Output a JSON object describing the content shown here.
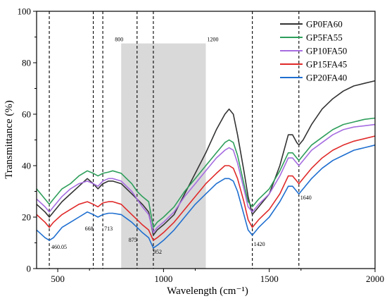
{
  "chart_data": {
    "type": "line",
    "title": "",
    "xlabel": "Wavelength (cm⁻¹)",
    "ylabel": "Transmittance (%)",
    "xlim": [
      400,
      2000
    ],
    "ylim": [
      0,
      100
    ],
    "xticks": [
      "500",
      "1000",
      "1500",
      "2000"
    ],
    "yticks": [
      "0",
      "20",
      "40",
      "60",
      "80",
      "100"
    ],
    "grid": false,
    "legend_position": "top-right",
    "shaded_region": {
      "x_start": 800,
      "x_end": 1200,
      "labels": [
        "800",
        "1200"
      ]
    },
    "reference_lines": [
      {
        "x": 460.05,
        "label": "460.05"
      },
      {
        "x": 668,
        "label": "668"
      },
      {
        "x": 713,
        "label": "713"
      },
      {
        "x": 875,
        "label": "875"
      },
      {
        "x": 952,
        "label": "952"
      },
      {
        "x": 1420,
        "label": "1420"
      },
      {
        "x": 1640,
        "label": "1640"
      }
    ],
    "series": [
      {
        "name": "GP0FA60",
        "color": "#333333",
        "points": [
          [
            400,
            25
          ],
          [
            440,
            22
          ],
          [
            460.05,
            20
          ],
          [
            480,
            22
          ],
          [
            520,
            26
          ],
          [
            560,
            29
          ],
          [
            600,
            32
          ],
          [
            640,
            35
          ],
          [
            668,
            33
          ],
          [
            690,
            31
          ],
          [
            713,
            33
          ],
          [
            740,
            34
          ],
          [
            760,
            34
          ],
          [
            800,
            33
          ],
          [
            850,
            29
          ],
          [
            875,
            27
          ],
          [
            900,
            25
          ],
          [
            930,
            22
          ],
          [
            952,
            13
          ],
          [
            970,
            15
          ],
          [
            1000,
            17
          ],
          [
            1050,
            21
          ],
          [
            1100,
            29
          ],
          [
            1150,
            37
          ],
          [
            1200,
            45
          ],
          [
            1250,
            54
          ],
          [
            1290,
            60
          ],
          [
            1310,
            62
          ],
          [
            1330,
            60
          ],
          [
            1350,
            52
          ],
          [
            1380,
            38
          ],
          [
            1400,
            28
          ],
          [
            1420,
            21
          ],
          [
            1450,
            24
          ],
          [
            1500,
            29
          ],
          [
            1550,
            40
          ],
          [
            1590,
            52
          ],
          [
            1610,
            52
          ],
          [
            1630,
            49
          ],
          [
            1640,
            48
          ],
          [
            1660,
            50
          ],
          [
            1700,
            56
          ],
          [
            1750,
            62
          ],
          [
            1800,
            66
          ],
          [
            1850,
            69
          ],
          [
            1900,
            71
          ],
          [
            1950,
            72
          ],
          [
            2000,
            73
          ]
        ]
      },
      {
        "name": "GP5FA55",
        "color": "#2e9e5b",
        "points": [
          [
            400,
            31
          ],
          [
            440,
            27
          ],
          [
            460.05,
            25
          ],
          [
            480,
            27
          ],
          [
            520,
            31
          ],
          [
            560,
            33
          ],
          [
            600,
            36
          ],
          [
            640,
            38
          ],
          [
            668,
            37
          ],
          [
            690,
            36
          ],
          [
            713,
            37
          ],
          [
            740,
            37.5
          ],
          [
            760,
            38
          ],
          [
            800,
            37
          ],
          [
            850,
            33
          ],
          [
            875,
            30
          ],
          [
            900,
            28
          ],
          [
            930,
            26
          ],
          [
            952,
            16
          ],
          [
            970,
            18
          ],
          [
            1000,
            20
          ],
          [
            1050,
            24
          ],
          [
            1100,
            30
          ],
          [
            1150,
            35
          ],
          [
            1200,
            40
          ],
          [
            1250,
            45
          ],
          [
            1290,
            49
          ],
          [
            1310,
            50
          ],
          [
            1330,
            49
          ],
          [
            1350,
            44
          ],
          [
            1380,
            33
          ],
          [
            1400,
            26
          ],
          [
            1420,
            24
          ],
          [
            1450,
            27
          ],
          [
            1500,
            31
          ],
          [
            1550,
            38
          ],
          [
            1590,
            45
          ],
          [
            1610,
            45
          ],
          [
            1630,
            43
          ],
          [
            1640,
            42
          ],
          [
            1660,
            44
          ],
          [
            1700,
            48
          ],
          [
            1750,
            51
          ],
          [
            1800,
            54
          ],
          [
            1850,
            56
          ],
          [
            1900,
            57
          ],
          [
            1950,
            58
          ],
          [
            2000,
            58.5
          ]
        ]
      },
      {
        "name": "GP10FA50",
        "color": "#a66de0",
        "points": [
          [
            400,
            27
          ],
          [
            440,
            24
          ],
          [
            460.05,
            22
          ],
          [
            480,
            24
          ],
          [
            520,
            28
          ],
          [
            560,
            31
          ],
          [
            600,
            33
          ],
          [
            640,
            34
          ],
          [
            668,
            33
          ],
          [
            690,
            32
          ],
          [
            713,
            34
          ],
          [
            740,
            35
          ],
          [
            760,
            35
          ],
          [
            800,
            34
          ],
          [
            850,
            30
          ],
          [
            875,
            27
          ],
          [
            900,
            24
          ],
          [
            930,
            21
          ],
          [
            952,
            14
          ],
          [
            970,
            16
          ],
          [
            1000,
            18
          ],
          [
            1050,
            22
          ],
          [
            1100,
            28
          ],
          [
            1150,
            33
          ],
          [
            1200,
            38
          ],
          [
            1250,
            43
          ],
          [
            1290,
            46
          ],
          [
            1310,
            47
          ],
          [
            1330,
            46
          ],
          [
            1350,
            41
          ],
          [
            1380,
            31
          ],
          [
            1400,
            24
          ],
          [
            1420,
            22
          ],
          [
            1450,
            25
          ],
          [
            1500,
            29
          ],
          [
            1550,
            36
          ],
          [
            1590,
            43
          ],
          [
            1610,
            43
          ],
          [
            1630,
            41
          ],
          [
            1640,
            40
          ],
          [
            1660,
            42
          ],
          [
            1700,
            46
          ],
          [
            1750,
            49
          ],
          [
            1800,
            52
          ],
          [
            1850,
            54
          ],
          [
            1900,
            55
          ],
          [
            1950,
            55.5
          ],
          [
            2000,
            56
          ]
        ]
      },
      {
        "name": "GP15FA45",
        "color": "#e02a2a",
        "points": [
          [
            400,
            21
          ],
          [
            440,
            18
          ],
          [
            460.05,
            16
          ],
          [
            480,
            18
          ],
          [
            520,
            21
          ],
          [
            560,
            23
          ],
          [
            600,
            25
          ],
          [
            640,
            26
          ],
          [
            668,
            25
          ],
          [
            690,
            24
          ],
          [
            713,
            25.5
          ],
          [
            740,
            26
          ],
          [
            760,
            26
          ],
          [
            800,
            25
          ],
          [
            850,
            21
          ],
          [
            875,
            19
          ],
          [
            900,
            17
          ],
          [
            930,
            15
          ],
          [
            952,
            11
          ],
          [
            970,
            12
          ],
          [
            1000,
            14
          ],
          [
            1050,
            18
          ],
          [
            1100,
            23
          ],
          [
            1150,
            28
          ],
          [
            1200,
            33
          ],
          [
            1250,
            37
          ],
          [
            1290,
            40
          ],
          [
            1310,
            40
          ],
          [
            1330,
            39
          ],
          [
            1350,
            35
          ],
          [
            1380,
            26
          ],
          [
            1400,
            19
          ],
          [
            1420,
            16
          ],
          [
            1450,
            19
          ],
          [
            1500,
            23
          ],
          [
            1550,
            29
          ],
          [
            1590,
            36
          ],
          [
            1610,
            36
          ],
          [
            1630,
            34
          ],
          [
            1640,
            33
          ],
          [
            1660,
            35
          ],
          [
            1700,
            39
          ],
          [
            1750,
            43
          ],
          [
            1800,
            46
          ],
          [
            1850,
            48
          ],
          [
            1900,
            49.5
          ],
          [
            1950,
            50.5
          ],
          [
            2000,
            51.5
          ]
        ]
      },
      {
        "name": "GP20FA40",
        "color": "#1f6fd0",
        "points": [
          [
            400,
            15
          ],
          [
            440,
            12
          ],
          [
            460.05,
            11
          ],
          [
            480,
            12
          ],
          [
            520,
            16
          ],
          [
            560,
            18
          ],
          [
            600,
            20
          ],
          [
            640,
            22
          ],
          [
            668,
            21
          ],
          [
            690,
            20
          ],
          [
            713,
            21
          ],
          [
            740,
            21.5
          ],
          [
            760,
            21.5
          ],
          [
            800,
            21
          ],
          [
            850,
            18
          ],
          [
            875,
            16
          ],
          [
            900,
            14
          ],
          [
            930,
            12
          ],
          [
            952,
            8
          ],
          [
            970,
            9
          ],
          [
            1000,
            11
          ],
          [
            1050,
            15
          ],
          [
            1100,
            20
          ],
          [
            1150,
            25
          ],
          [
            1200,
            29
          ],
          [
            1250,
            33
          ],
          [
            1290,
            35
          ],
          [
            1310,
            35
          ],
          [
            1330,
            34
          ],
          [
            1350,
            30
          ],
          [
            1380,
            21
          ],
          [
            1400,
            15
          ],
          [
            1420,
            13
          ],
          [
            1450,
            16
          ],
          [
            1500,
            20
          ],
          [
            1550,
            26
          ],
          [
            1590,
            32
          ],
          [
            1610,
            32
          ],
          [
            1630,
            30
          ],
          [
            1640,
            29
          ],
          [
            1660,
            31
          ],
          [
            1700,
            35
          ],
          [
            1750,
            39
          ],
          [
            1800,
            42
          ],
          [
            1850,
            44
          ],
          [
            1900,
            46
          ],
          [
            1950,
            47
          ],
          [
            2000,
            48
          ]
        ]
      }
    ]
  }
}
